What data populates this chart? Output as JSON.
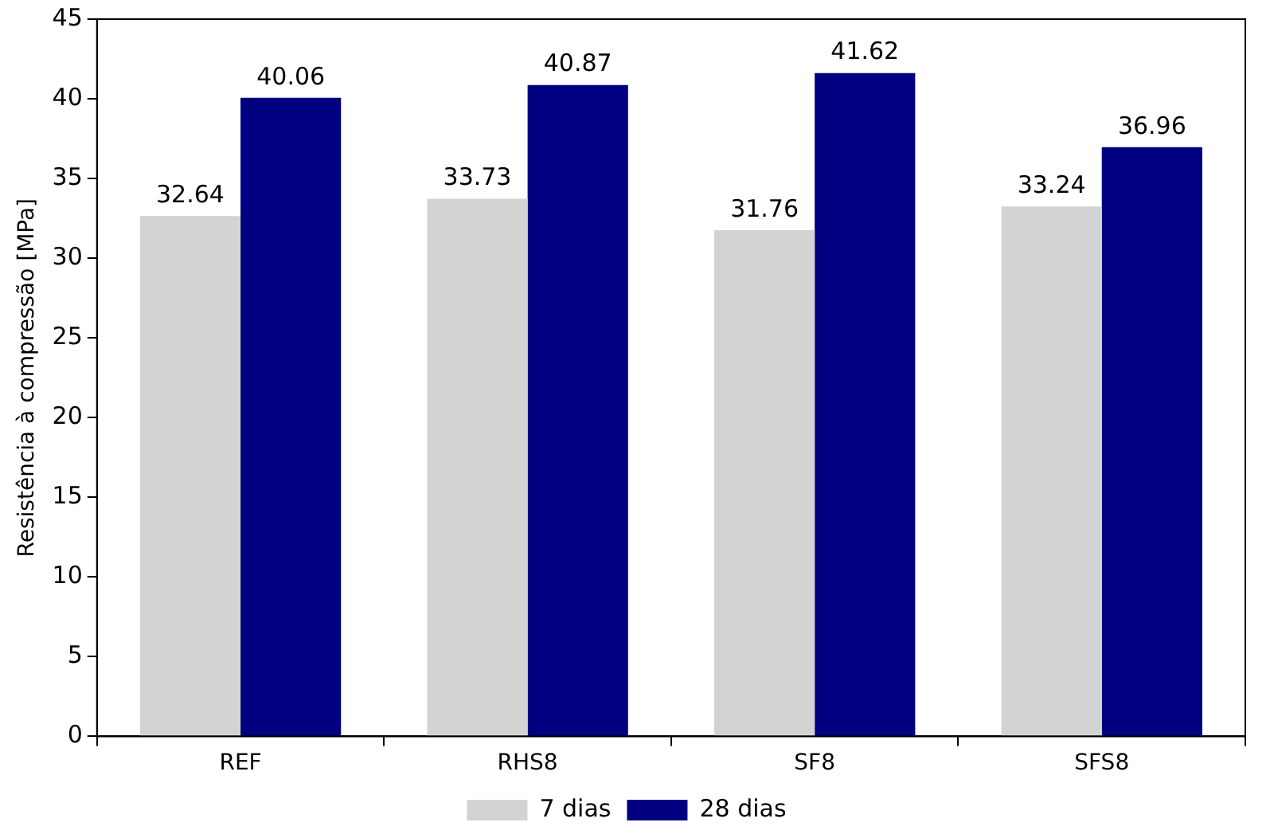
{
  "chart_data": {
    "type": "bar",
    "ylabel": "Resistência à compressão [MPa]",
    "categories": [
      "REF",
      "RHS8",
      "SF8",
      "SFS8"
    ],
    "series": [
      {
        "name": "7 dias",
        "color": "#d3d3d3",
        "values": [
          32.64,
          33.73,
          31.76,
          33.24
        ]
      },
      {
        "name": "28 dias",
        "color": "#000080",
        "values": [
          40.06,
          40.87,
          41.62,
          36.96
        ]
      }
    ],
    "ylim": [
      0,
      45
    ],
    "yticks": [
      0,
      5,
      10,
      15,
      20,
      25,
      30,
      35,
      40,
      45
    ],
    "data_labels": true,
    "grid": false,
    "legend": "bottom"
  }
}
